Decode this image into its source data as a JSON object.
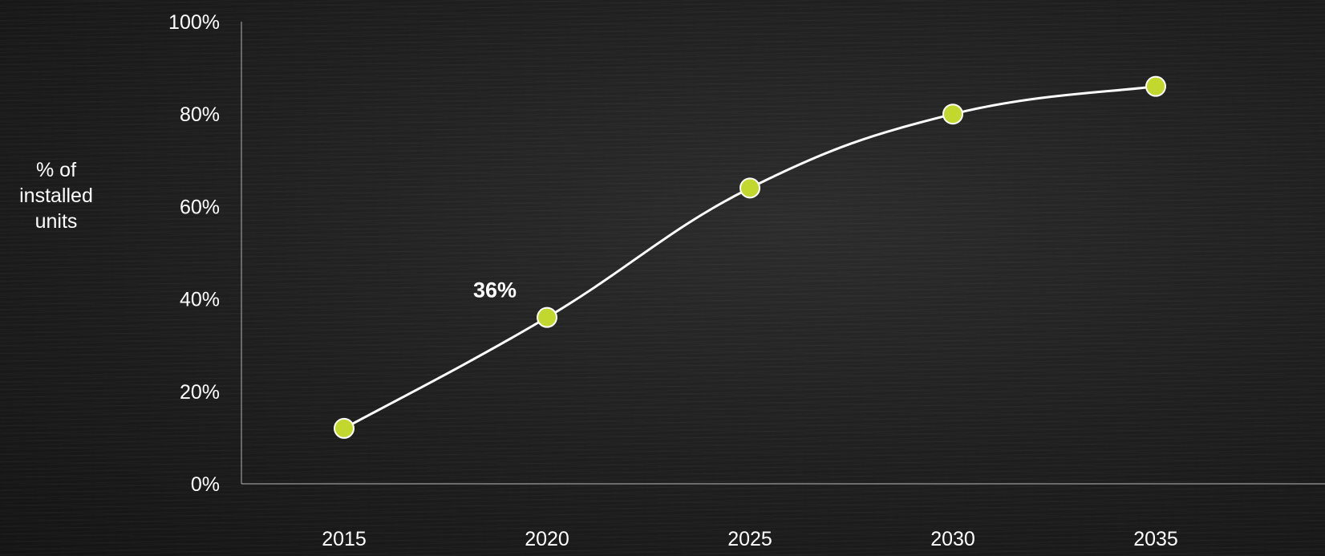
{
  "chart_data": {
    "type": "line",
    "title": "",
    "xlabel": "",
    "ylabel": "% of\ninstalled\nunits",
    "categories": [
      "2015",
      "2020",
      "2025",
      "2030",
      "2035"
    ],
    "values": [
      12,
      36,
      64,
      80,
      86
    ],
    "ylim": [
      0,
      100
    ],
    "yticks": [
      "0%",
      "20%",
      "40%",
      "60%",
      "80%",
      "100%"
    ],
    "annotations": [
      {
        "category": "2020",
        "text": "36%"
      }
    ],
    "grid": false,
    "legend": "none",
    "colors": {
      "line": "#ffffff",
      "marker": "#c3d82e",
      "marker_edge": "#ffffff",
      "axis": "#9a9a9a",
      "text": "#ffffff"
    }
  }
}
